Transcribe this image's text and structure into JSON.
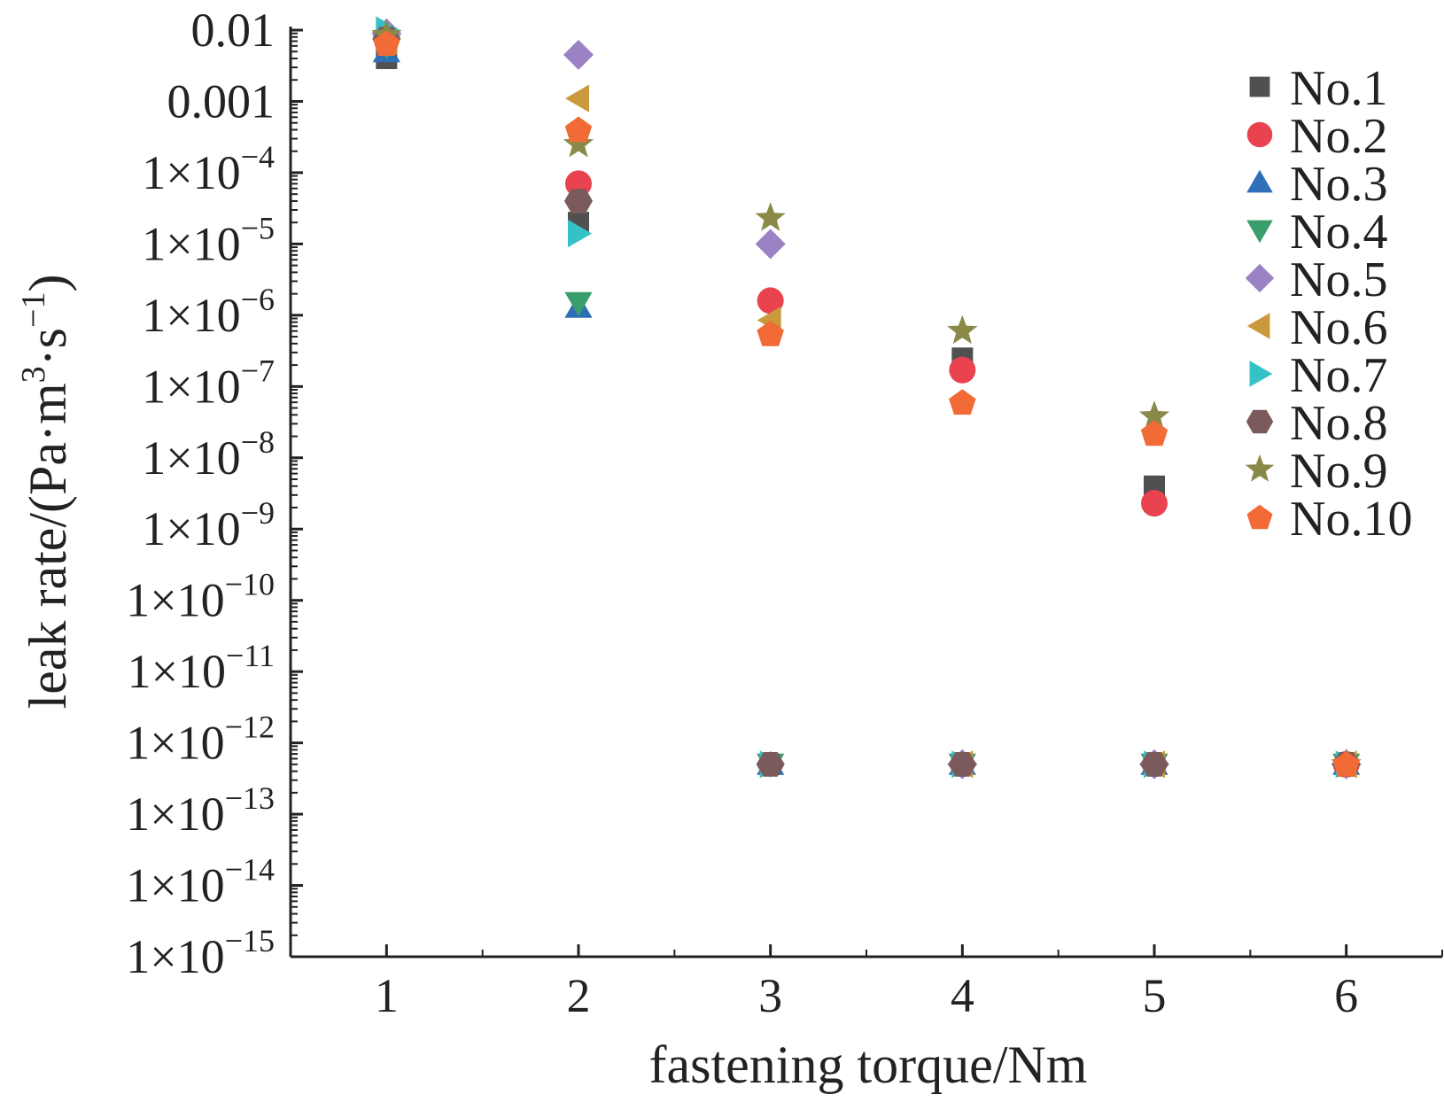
{
  "chart_data": {
    "type": "scatter",
    "title": "",
    "xlabel": "fastening torque/Nm",
    "ylabel": {
      "prefix": "leak rate/(Pa·m",
      "sup1": "3",
      "mid": "·s",
      "sup2": "−1",
      "suffix": ")"
    },
    "x_scale": "linear",
    "y_scale": "log",
    "xlim": [
      0.5,
      6.5
    ],
    "ylim": [
      1e-15,
      0.01
    ],
    "x_ticks": [
      1,
      2,
      3,
      4,
      5,
      6
    ],
    "x_tick_labels": [
      "1",
      "2",
      "3",
      "4",
      "5",
      "6"
    ],
    "y_ticks": [
      {
        "value": 0.01,
        "plain": "0.01"
      },
      {
        "value": 0.001,
        "plain": "0.001"
      },
      {
        "value": 0.0001,
        "base": "1×10",
        "exp": "−4"
      },
      {
        "value": 1e-05,
        "base": "1×10",
        "exp": "−5"
      },
      {
        "value": 1e-06,
        "base": "1×10",
        "exp": "−6"
      },
      {
        "value": 1e-07,
        "base": "1×10",
        "exp": "−7"
      },
      {
        "value": 1e-08,
        "base": "1×10",
        "exp": "−8"
      },
      {
        "value": 1e-09,
        "base": "1×10",
        "exp": "−9"
      },
      {
        "value": 1e-10,
        "base": "1×10",
        "exp": "−10"
      },
      {
        "value": 1e-11,
        "base": "1×10",
        "exp": "−11"
      },
      {
        "value": 1e-12,
        "base": "1×10",
        "exp": "−12"
      },
      {
        "value": 1e-13,
        "base": "1×10",
        "exp": "−13"
      },
      {
        "value": 1e-14,
        "base": "1×10",
        "exp": "−14"
      },
      {
        "value": 1e-15,
        "base": "1×10",
        "exp": "−15"
      }
    ],
    "grid": false,
    "legend_position": "top-right",
    "series": [
      {
        "name": "No.1",
        "marker": "square",
        "color": "#505050",
        "x": [
          1,
          2,
          3,
          4,
          5,
          6
        ],
        "y": [
          0.004,
          2e-05,
          5e-13,
          2.5e-07,
          4e-09,
          5e-13
        ]
      },
      {
        "name": "No.2",
        "marker": "circle",
        "color": "#e8434f",
        "x": [
          1,
          2,
          3,
          4,
          5,
          6
        ],
        "y": [
          0.008,
          7e-05,
          1.6e-06,
          1.7e-07,
          2.3e-09,
          5e-13
        ]
      },
      {
        "name": "No.3",
        "marker": "triangle-up",
        "color": "#2f6fb8",
        "x": [
          1,
          2,
          3,
          4,
          5,
          6
        ],
        "y": [
          0.005,
          1.3e-06,
          5e-13,
          5e-13,
          5e-13,
          5e-13
        ]
      },
      {
        "name": "No.4",
        "marker": "triangle-down",
        "color": "#3a9e6c",
        "x": [
          1,
          2,
          3,
          4,
          5,
          6
        ],
        "y": [
          0.006,
          1.5e-06,
          5e-13,
          5e-13,
          5e-13,
          5e-13
        ]
      },
      {
        "name": "No.5",
        "marker": "diamond",
        "color": "#9b82c4",
        "x": [
          1,
          2,
          3,
          4,
          5,
          6
        ],
        "y": [
          0.009,
          0.0045,
          1e-05,
          5e-13,
          5e-13,
          5e-13
        ]
      },
      {
        "name": "No.6",
        "marker": "triangle-left",
        "color": "#c9993b",
        "x": [
          1,
          2,
          3,
          4,
          5,
          6
        ],
        "y": [
          0.007,
          0.0011,
          8.5e-07,
          5e-13,
          5e-13,
          5e-13
        ]
      },
      {
        "name": "No.7",
        "marker": "triangle-right",
        "color": "#35c2c6",
        "x": [
          1,
          2,
          3,
          4,
          5,
          6
        ],
        "y": [
          0.01,
          1.4e-05,
          5e-13,
          5e-13,
          5e-13,
          5e-13
        ]
      },
      {
        "name": "No.8",
        "marker": "hexagon",
        "color": "#7a5a5a",
        "x": [
          1,
          2,
          3,
          4,
          5,
          6
        ],
        "y": [
          0.0075,
          4e-05,
          5e-13,
          5e-13,
          5e-13,
          5e-13
        ]
      },
      {
        "name": "No.9",
        "marker": "star",
        "color": "#8a8a48",
        "x": [
          1,
          2,
          3,
          4,
          5,
          6
        ],
        "y": [
          0.0085,
          0.00025,
          2.3e-05,
          6e-07,
          3.8e-08,
          5e-13
        ]
      },
      {
        "name": "No.10",
        "marker": "pentagon",
        "color": "#f26a35",
        "x": [
          1,
          2,
          3,
          4,
          5,
          6
        ],
        "y": [
          0.0065,
          0.0004,
          5.5e-07,
          6e-08,
          2.2e-08,
          5e-13
        ]
      }
    ]
  }
}
